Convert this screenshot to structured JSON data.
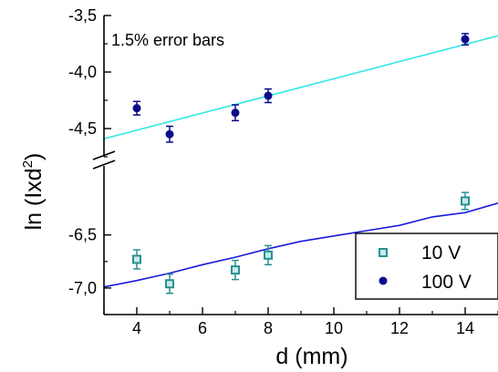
{
  "chart_data": {
    "type": "scatter",
    "xlabel": "d (mm)",
    "ylabel_main": "ln (Ixd",
    "ylabel_superscript": "2",
    "ylabel_close": ")",
    "xlim": [
      3,
      15
    ],
    "x_ticks": [
      4,
      6,
      8,
      10,
      12,
      14
    ],
    "x_tick_labels": [
      "4",
      "6",
      "8",
      "10",
      "12",
      "14"
    ],
    "axis_break": true,
    "upper_panel": {
      "ylim": [
        -4.75,
        -3.5
      ],
      "y_ticks": [
        -3.5,
        -4.0,
        -4.5
      ],
      "y_tick_labels": [
        "-3,5",
        "-4,0",
        "-4,5"
      ]
    },
    "lower_panel": {
      "ylim": [
        -7.25,
        -5.85
      ],
      "y_ticks": [
        -6.5,
        -7.0
      ],
      "y_tick_labels": [
        "-6,5",
        "-7,0"
      ]
    },
    "annotation": "1.5% error bars",
    "series": [
      {
        "name": "100 V",
        "panel": "upper",
        "marker": "circle",
        "color": "#0c0c8c",
        "fit_color": "#33e6e6",
        "x": [
          4,
          5,
          7,
          8,
          14
        ],
        "y": [
          -4.32,
          -4.55,
          -4.36,
          -4.21,
          -3.71
        ],
        "error": [
          0.06,
          0.07,
          0.07,
          0.06,
          0.05
        ],
        "fit": {
          "x": [
            3,
            15
          ],
          "y": [
            -4.59,
            -3.68
          ]
        }
      },
      {
        "name": "10 V",
        "panel": "lower",
        "marker": "square",
        "color": "#2a9090",
        "fit_color": "#1a1adc",
        "x": [
          4,
          5,
          7,
          8,
          14
        ],
        "y": [
          -6.73,
          -6.96,
          -6.83,
          -6.69,
          -6.18
        ],
        "error": [
          0.09,
          0.09,
          0.09,
          0.09,
          0.08
        ],
        "fit": {
          "x": [
            3,
            4,
            5,
            6,
            7,
            8,
            9,
            10,
            11,
            12,
            13,
            14,
            15
          ],
          "y": [
            -6.99,
            -6.93,
            -6.86,
            -6.78,
            -6.71,
            -6.63,
            -6.56,
            -6.51,
            -6.46,
            -6.41,
            -6.33,
            -6.29,
            -6.2
          ]
        }
      }
    ],
    "legend": {
      "placement": "bottom-right",
      "order": [
        "10 V",
        "100 V"
      ]
    }
  }
}
